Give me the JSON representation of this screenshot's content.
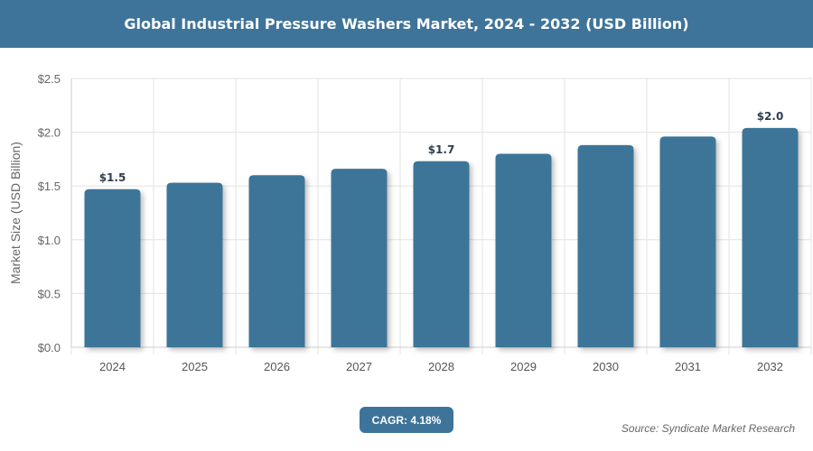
{
  "header": {
    "title": "Global Industrial Pressure Washers Market, 2024 - 2032 (USD Billion)"
  },
  "chart_data": {
    "type": "bar",
    "title": "Global Industrial Pressure Washers Market, 2024 - 2032 (USD Billion)",
    "xlabel": "",
    "ylabel": "Market Size (USD Billion)",
    "categories": [
      "2024",
      "2025",
      "2026",
      "2027",
      "2028",
      "2029",
      "2030",
      "2031",
      "2032"
    ],
    "values": [
      1.47,
      1.53,
      1.6,
      1.66,
      1.73,
      1.8,
      1.88,
      1.96,
      2.04
    ],
    "data_labels": {
      "2024": "$1.5",
      "2028": "$1.7",
      "2032": "$2.0"
    },
    "ylim": [
      0,
      2.5
    ],
    "yticks": [
      "$0.0",
      "$0.5",
      "$1.0",
      "$1.5",
      "$2.0",
      "$2.5"
    ],
    "grid": true,
    "bar_color": "#3e7499"
  },
  "footer": {
    "cagr": "CAGR: 4.18%",
    "source": "Source: Syndicate Market Research"
  }
}
